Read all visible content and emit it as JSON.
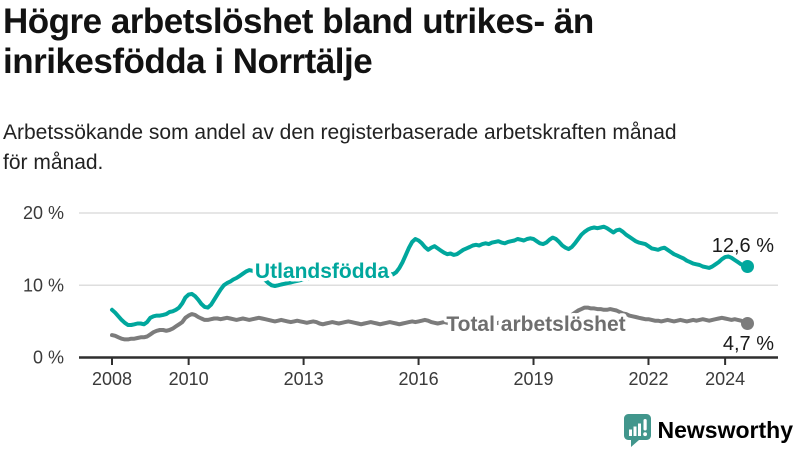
{
  "title": "Högre arbetslöshet bland utrikes- än inrikesfödda i Norrtälje",
  "subtitle": "Arbetssökande som andel av den registerbaserade arbetskraften månad för månad.",
  "branding": {
    "logo_text": "Newsworthy",
    "logo_icon": "newsworthy-speech-bubble-bar-chart-icon",
    "icon_color": "#41968c",
    "text_color": "#2e8178"
  },
  "colors": {
    "accent_teal": "#00a79d",
    "neutral_gray": "#7c7c7c",
    "axis_dark": "#2f2f2f",
    "gridline": "#dedede"
  },
  "chart_data": {
    "type": "line",
    "title": "Högre arbetslöshet bland utrikes- än inrikesfödda i Norrtälje",
    "subtitle": "Arbetssökande som andel av den registerbaserade arbetskraften månad för månad.",
    "unit": "%",
    "frequency": "monthly",
    "x_start": "2008-01",
    "x_end": "2024-08",
    "x_tick_labels": [
      "2008",
      "2010",
      "2013",
      "2016",
      "2019",
      "2022",
      "2024"
    ],
    "y_tick_labels": [
      "0 %",
      "10 %",
      "20 %"
    ],
    "ylim": [
      0,
      21.5
    ],
    "grid": "horizontal",
    "legend_position": "inline-labels",
    "series": [
      {
        "name": "Utlandsfödda",
        "color": "#00a79d",
        "label_color": "#00a79d",
        "end_value": 12.6,
        "end_label": "12,6 %",
        "values": [
          6.6,
          6.2,
          5.7,
          5.2,
          4.8,
          4.5,
          4.5,
          4.6,
          4.7,
          4.7,
          4.6,
          4.9,
          5.5,
          5.7,
          5.8,
          5.8,
          5.9,
          6.0,
          6.3,
          6.4,
          6.6,
          6.9,
          7.5,
          8.3,
          8.7,
          8.8,
          8.5,
          8.0,
          7.4,
          7.0,
          6.9,
          7.3,
          8.0,
          8.7,
          9.4,
          10.0,
          10.3,
          10.5,
          10.8,
          11.0,
          11.3,
          11.6,
          11.9,
          12.1,
          12.0,
          11.8,
          11.4,
          11.0,
          10.7,
          10.3,
          10.0,
          9.9,
          10.0,
          10.1,
          10.2,
          10.3,
          10.4,
          10.5,
          10.6,
          10.7,
          10.8,
          10.9,
          10.9,
          11.0,
          11.0,
          11.1,
          11.1,
          11.2,
          11.2,
          11.3,
          11.3,
          11.4,
          11.4,
          11.5,
          11.5,
          11.4,
          11.4,
          11.5,
          11.5,
          11.6,
          11.6,
          11.5,
          11.6,
          11.6,
          11.7,
          11.6,
          11.5,
          11.6,
          11.5,
          11.8,
          12.4,
          13.2,
          14.2,
          15.2,
          16.0,
          16.4,
          16.2,
          15.8,
          15.3,
          14.9,
          15.2,
          15.4,
          15.1,
          14.8,
          14.5,
          14.3,
          14.4,
          14.2,
          14.3,
          14.6,
          14.9,
          15.1,
          15.3,
          15.5,
          15.6,
          15.5,
          15.7,
          15.8,
          15.7,
          15.9,
          16.0,
          16.1,
          15.9,
          15.8,
          16.0,
          16.1,
          16.2,
          16.4,
          16.3,
          16.2,
          16.4,
          16.5,
          16.4,
          16.1,
          15.8,
          15.7,
          15.9,
          16.3,
          16.6,
          16.4,
          16.0,
          15.5,
          15.2,
          15.0,
          15.3,
          15.8,
          16.4,
          17.0,
          17.4,
          17.7,
          17.9,
          18.0,
          17.9,
          18.0,
          18.1,
          17.9,
          17.6,
          17.3,
          17.6,
          17.7,
          17.4,
          17.0,
          16.7,
          16.4,
          16.1,
          15.9,
          15.8,
          15.7,
          15.4,
          15.1,
          15.0,
          14.9,
          15.1,
          15.2,
          14.9,
          14.6,
          14.3,
          14.1,
          13.9,
          13.7,
          13.4,
          13.2,
          13.0,
          12.9,
          12.8,
          12.6,
          12.5,
          12.4,
          12.6,
          12.9,
          13.2,
          13.6,
          13.9,
          14.0,
          13.8,
          13.5,
          13.2,
          12.9,
          12.7,
          12.6
        ]
      },
      {
        "name": "Total arbetslöshet",
        "color": "#7c7c7c",
        "label_color": "#6f6f6f",
        "end_value": 4.7,
        "end_label": "4,7 %",
        "values": [
          3.1,
          3.0,
          2.8,
          2.6,
          2.5,
          2.5,
          2.6,
          2.6,
          2.7,
          2.8,
          2.8,
          2.9,
          3.2,
          3.5,
          3.7,
          3.8,
          3.8,
          3.7,
          3.8,
          4.0,
          4.3,
          4.6,
          4.9,
          5.5,
          5.8,
          6.0,
          5.9,
          5.6,
          5.4,
          5.2,
          5.2,
          5.3,
          5.4,
          5.4,
          5.3,
          5.4,
          5.5,
          5.4,
          5.3,
          5.2,
          5.3,
          5.4,
          5.3,
          5.2,
          5.3,
          5.4,
          5.5,
          5.4,
          5.3,
          5.2,
          5.1,
          5.0,
          5.1,
          5.2,
          5.1,
          5.0,
          4.9,
          5.0,
          5.1,
          5.0,
          4.9,
          4.8,
          4.9,
          5.0,
          4.9,
          4.7,
          4.6,
          4.7,
          4.8,
          4.9,
          4.8,
          4.7,
          4.8,
          4.9,
          5.0,
          4.9,
          4.8,
          4.7,
          4.6,
          4.7,
          4.8,
          4.9,
          4.8,
          4.7,
          4.6,
          4.7,
          4.8,
          4.9,
          4.8,
          4.7,
          4.6,
          4.7,
          4.8,
          4.9,
          5.0,
          4.9,
          5.0,
          5.1,
          5.2,
          5.1,
          4.9,
          4.8,
          4.7,
          4.8,
          4.9,
          4.8,
          4.7,
          4.6,
          4.7,
          4.8,
          4.9,
          4.8,
          4.7,
          4.6,
          4.5,
          4.6,
          4.7,
          4.8,
          4.7,
          4.6,
          4.7,
          4.8,
          4.9,
          4.8,
          4.7,
          4.6,
          4.5,
          4.6,
          4.7,
          4.8,
          4.7,
          4.6,
          4.7,
          4.8,
          4.9,
          4.9,
          4.8,
          4.8,
          4.9,
          5.0,
          5.1,
          5.2,
          5.3,
          5.6,
          5.9,
          6.2,
          6.5,
          6.7,
          6.9,
          6.9,
          6.8,
          6.8,
          6.7,
          6.7,
          6.6,
          6.6,
          6.7,
          6.6,
          6.5,
          6.3,
          6.1,
          6.0,
          5.8,
          5.7,
          5.6,
          5.5,
          5.4,
          5.3,
          5.3,
          5.2,
          5.1,
          5.1,
          5.0,
          5.1,
          5.2,
          5.1,
          5.0,
          5.1,
          5.2,
          5.1,
          5.0,
          5.1,
          5.2,
          5.1,
          5.2,
          5.3,
          5.2,
          5.1,
          5.2,
          5.3,
          5.4,
          5.5,
          5.4,
          5.3,
          5.2,
          5.3,
          5.2,
          5.1,
          4.9,
          4.7
        ]
      }
    ]
  }
}
